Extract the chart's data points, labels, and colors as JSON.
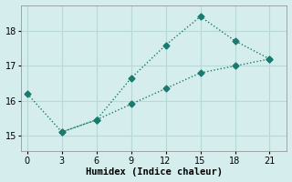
{
  "xlabel": "Humidex (Indice chaleur)",
  "bg_color": "#d5eded",
  "line_color": "#1a7a6e",
  "grid_color": "#b8d8d8",
  "xlim": [
    -0.5,
    22.5
  ],
  "ylim": [
    14.55,
    18.75
  ],
  "xticks": [
    0,
    3,
    6,
    9,
    12,
    15,
    18,
    21
  ],
  "yticks": [
    15,
    16,
    17,
    18
  ],
  "x_upper": [
    0,
    3,
    6,
    9,
    12,
    15,
    18,
    21
  ],
  "y_upper": [
    16.2,
    15.1,
    15.45,
    16.65,
    17.6,
    18.42,
    17.72,
    17.2
  ],
  "x_lower": [
    3,
    6,
    9,
    12,
    15,
    18,
    21
  ],
  "y_lower": [
    15.1,
    15.45,
    15.9,
    16.35,
    16.8,
    17.0,
    17.2
  ],
  "marker_size": 3.5,
  "linewidth": 1.0
}
